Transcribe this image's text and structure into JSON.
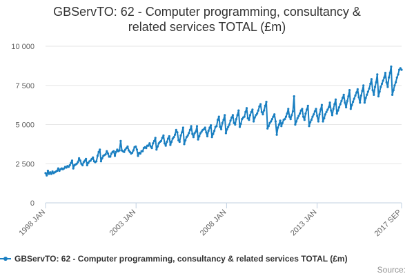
{
  "chart_data": {
    "type": "line",
    "title_lines": [
      "GBServTO: 62 - Computer programming, consultancy &",
      "related services TOTAL (£m)"
    ],
    "xlabel": "",
    "ylabel": "",
    "start": "1998-01",
    "end": "2017-09",
    "frequency": "monthly",
    "x_tick_labels": [
      "1998 JAN",
      "2003 JAN",
      "2008 JAN",
      "2013 JAN",
      "2017 SEP"
    ],
    "x_tick_dates": [
      "1998-01",
      "2003-01",
      "2008-01",
      "2013-01",
      "2017-09"
    ],
    "y_tick_values": [
      0,
      2500,
      5000,
      7500,
      10000
    ],
    "y_tick_labels": [
      "0",
      "2 500",
      "5 000",
      "7 500",
      "10 000"
    ],
    "ylim": [
      0,
      10000
    ],
    "grid": "horizontal",
    "legend_position": "bottom",
    "color": "#1a7fc1",
    "series": [
      {
        "name": "GBServTO: 62 - Computer programming, consultancy & related services TOTAL (£m)",
        "values": [
          1900,
          1750,
          2050,
          1850,
          1950,
          1850,
          2000,
          1900,
          1950,
          2000,
          2050,
          2200,
          2050,
          2150,
          2200,
          2150,
          2200,
          2300,
          2250,
          2350,
          2300,
          2400,
          2550,
          2700,
          2200,
          2400,
          2450,
          2500,
          2600,
          2850,
          2700,
          2500,
          2400,
          2600,
          2700,
          2800,
          2400,
          2550,
          2650,
          2700,
          2800,
          2900,
          2650,
          2600,
          2650,
          3000,
          3250,
          3400,
          2650,
          2850,
          3000,
          3050,
          3100,
          3300,
          3150,
          2950,
          2950,
          3150,
          3250,
          3300,
          3000,
          3250,
          3400,
          3300,
          3350,
          3950,
          3350,
          3300,
          3250,
          3400,
          3500,
          3600,
          3350,
          3250,
          3150,
          3200,
          3350,
          3550,
          3600,
          3400,
          3000,
          3200,
          3150,
          3300,
          3300,
          3500,
          3550,
          3500,
          3650,
          3650,
          3800,
          3600,
          3500,
          3800,
          3950,
          4150,
          3400,
          3600,
          3800,
          3900,
          3950,
          4150,
          4300,
          3800,
          3650,
          3900,
          4100,
          4250,
          3700,
          3900,
          4100,
          4200,
          4350,
          4650,
          4500,
          4000,
          3900,
          4300,
          4500,
          4800,
          3750,
          4000,
          4200,
          4300,
          4450,
          4650,
          4900,
          4400,
          4200,
          4450,
          4550,
          4900,
          4050,
          4250,
          4450,
          4550,
          4650,
          4700,
          4800,
          4500,
          4250,
          4600,
          4800,
          4950,
          4200,
          4400,
          4600,
          4850,
          4900,
          5300,
          5500,
          4850,
          4700,
          5100,
          5300,
          5600,
          4450,
          4700,
          4850,
          5000,
          5250,
          5450,
          5600,
          5100,
          5000,
          5350,
          5600,
          5900,
          4850,
          5050,
          5350,
          5450,
          5500,
          5800,
          6050,
          5400,
          5300,
          5600,
          5800,
          5950,
          5200,
          5450,
          5600,
          5700,
          5900,
          6150,
          6300,
          5800,
          5650,
          5900,
          6200,
          6450,
          4750,
          4900,
          5100,
          5200,
          5350,
          5500,
          5650,
          5200,
          4350,
          4800,
          5000,
          5250,
          4900,
          5100,
          5300,
          5350,
          5500,
          5700,
          6000,
          5500,
          5350,
          5600,
          5850,
          6800,
          5000,
          5200,
          5400,
          5550,
          5700,
          5900,
          6000,
          5500,
          5300,
          5700,
          5950,
          6200,
          4900,
          5150,
          5300,
          5500,
          5650,
          5850,
          6000,
          5550,
          5200,
          5650,
          5950,
          6250,
          5200,
          5400,
          5650,
          5800,
          5950,
          6100,
          6400,
          5900,
          5600,
          6000,
          6300,
          6600,
          5700,
          5900,
          6100,
          6300,
          6500,
          6700,
          6900,
          6400,
          6100,
          6500,
          6800,
          7200,
          6000,
          6250,
          6450,
          6650,
          6850,
          7050,
          7250,
          6750,
          6400,
          6850,
          7150,
          7500,
          6400,
          6700,
          6900,
          7100,
          7300,
          7600,
          7900,
          7200,
          6900,
          7400,
          7700,
          8200,
          6800,
          7100,
          7400,
          7600,
          7800,
          8000,
          8300,
          7700,
          7400,
          8000,
          8300,
          8700,
          6900,
          7200,
          7500,
          7700,
          8000,
          8200,
          8500,
          8600,
          8500
        ]
      }
    ]
  },
  "legend": {
    "label": "GBServTO: 62 - Computer programming, consultancy & related services TOTAL (£m)"
  },
  "source": {
    "label": "Source:"
  }
}
